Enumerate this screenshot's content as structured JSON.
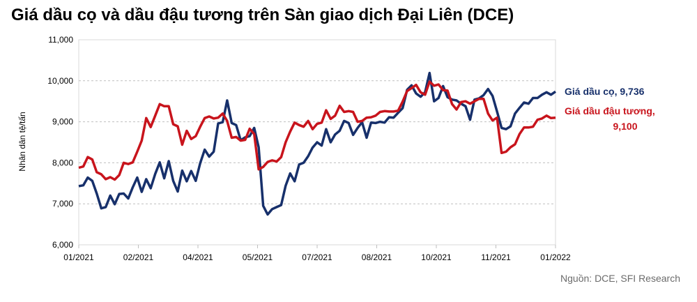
{
  "chart_data": {
    "type": "line",
    "title": "Giá dầu cọ và dầu đậu tương trên Sàn giao dịch Đại Liên (DCE)",
    "ylabel": "Nhân dân tệ/tấn",
    "xlabel": "",
    "ylim": [
      6000,
      11000
    ],
    "yticks": [
      "6,000",
      "7,000",
      "8,000",
      "9,000",
      "10,000",
      "11,000"
    ],
    "xticks": [
      "01/2021",
      "02/2021",
      "04/2021",
      "05/2021",
      "07/2021",
      "08/2021",
      "10/2021",
      "11/2021",
      "01/2022"
    ],
    "grid": "horizontal",
    "legend": "right",
    "source": "Nguồn: DCE, SFI Research",
    "series": [
      {
        "name": "Giá dầu cọ",
        "label": "Giá dầu cọ, 9,736",
        "color": "#17306b",
        "values": [
          7430,
          7450,
          7640,
          7560,
          7250,
          6890,
          6920,
          7200,
          6990,
          7240,
          7250,
          7130,
          7400,
          7640,
          7290,
          7600,
          7380,
          7730,
          8010,
          7620,
          8040,
          7560,
          7300,
          7810,
          7550,
          7800,
          7560,
          7990,
          8320,
          8150,
          8270,
          8960,
          8990,
          9520,
          8970,
          8920,
          8550,
          8620,
          8650,
          8850,
          8380,
          6950,
          6740,
          6870,
          6920,
          6970,
          7440,
          7740,
          7550,
          7960,
          8000,
          8160,
          8370,
          8500,
          8420,
          8820,
          8500,
          8690,
          8780,
          9020,
          8970,
          8680,
          8850,
          8990,
          8610,
          8980,
          8970,
          9000,
          8980,
          9110,
          9100,
          9220,
          9330,
          9780,
          9890,
          9690,
          9610,
          9720,
          10190,
          9500,
          9580,
          9870,
          9600,
          9540,
          9520,
          9440,
          9380,
          9050,
          9540,
          9570,
          9650,
          9800,
          9630,
          9250,
          8850,
          8820,
          8890,
          9200,
          9340,
          9470,
          9440,
          9580,
          9580,
          9660,
          9720,
          9660,
          9736
        ]
      },
      {
        "name": "Giá dầu đậu tương",
        "label": "Giá dầu đậu tương, 9,100",
        "color": "#c8141c",
        "values": [
          7880,
          7910,
          8140,
          8080,
          7770,
          7720,
          7600,
          7650,
          7590,
          7700,
          8000,
          7970,
          8010,
          8270,
          8540,
          9090,
          8870,
          9150,
          9430,
          9380,
          9380,
          8940,
          8890,
          8440,
          8780,
          8580,
          8650,
          8880,
          9090,
          9130,
          9080,
          9100,
          9200,
          9020,
          8610,
          8630,
          8540,
          8560,
          8830,
          8700,
          7840,
          7900,
          8020,
          8060,
          8030,
          8140,
          8500,
          8760,
          8980,
          8920,
          8880,
          9020,
          8820,
          8950,
          8980,
          9280,
          9070,
          9150,
          9390,
          9240,
          9260,
          9240,
          9000,
          9020,
          9100,
          9110,
          9150,
          9240,
          9260,
          9250,
          9250,
          9270,
          9490,
          9750,
          9820,
          9900,
          9720,
          9660,
          9980,
          9880,
          9910,
          9770,
          9760,
          9430,
          9300,
          9480,
          9500,
          9440,
          9500,
          9560,
          9560,
          9200,
          9030,
          9100,
          8240,
          8270,
          8380,
          8450,
          8700,
          8860,
          8860,
          8880,
          9050,
          9080,
          9150,
          9090,
          9100
        ]
      }
    ]
  }
}
